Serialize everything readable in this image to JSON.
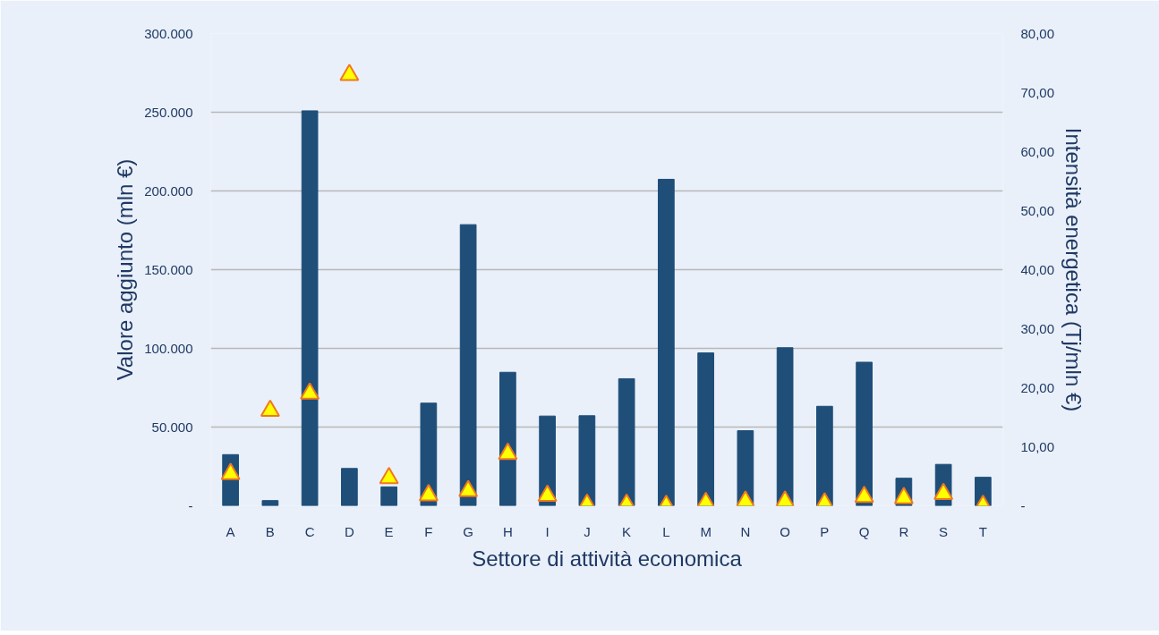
{
  "chart_data": {
    "type": "bar",
    "xlabel": "Settore di attività economica",
    "ylabel": "Valore aggiunto (mln €)",
    "y2label": "Intensità energetica (Tj/mln €)",
    "categories": [
      "A",
      "B",
      "C",
      "D",
      "E",
      "F",
      "G",
      "H",
      "I",
      "J",
      "K",
      "L",
      "M",
      "N",
      "O",
      "P",
      "Q",
      "R",
      "S",
      "T"
    ],
    "series": [
      {
        "color": "#1f4e79",
        "values": [
          32500,
          3300,
          250900,
          23700,
          12000,
          65200,
          178600,
          84800,
          57000,
          57200,
          80700,
          207400,
          97100,
          47700,
          100400,
          63200,
          91200,
          17500,
          26300,
          18100
        ]
      },
      {
        "type": "scatter",
        "axis": "y2",
        "marker": "triangle",
        "color": "#ffff00",
        "values": [
          5.4,
          16.1,
          19.0,
          73.0,
          4.7,
          1.8,
          2.5,
          8.8,
          1.7,
          0.2,
          0.2,
          0.0,
          0.5,
          0.7,
          0.7,
          0.4,
          1.5,
          1.3,
          2.0,
          0.0
        ]
      }
    ],
    "ylim": [
      0,
      300000
    ],
    "yticks": [
      {
        "value": 0,
        "label": "-"
      },
      {
        "value": 50000,
        "label": "50.000"
      },
      {
        "value": 100000,
        "label": "100.000"
      },
      {
        "value": 150000,
        "label": "150.000"
      },
      {
        "value": 200000,
        "label": "200.000"
      },
      {
        "value": 250000,
        "label": "250.000"
      },
      {
        "value": 300000,
        "label": "300.000"
      }
    ],
    "y2lim": [
      0,
      80
    ],
    "y2ticks": [
      {
        "value": 0,
        "label": "-"
      },
      {
        "value": 10,
        "label": "10,00"
      },
      {
        "value": 20,
        "label": "20,00"
      },
      {
        "value": 30,
        "label": "30,00"
      },
      {
        "value": 40,
        "label": "40,00"
      },
      {
        "value": 50,
        "label": "50,00"
      },
      {
        "value": 60,
        "label": "60,00"
      },
      {
        "value": 70,
        "label": "70,00"
      },
      {
        "value": 80,
        "label": "80,00"
      }
    ],
    "grid": "y"
  }
}
